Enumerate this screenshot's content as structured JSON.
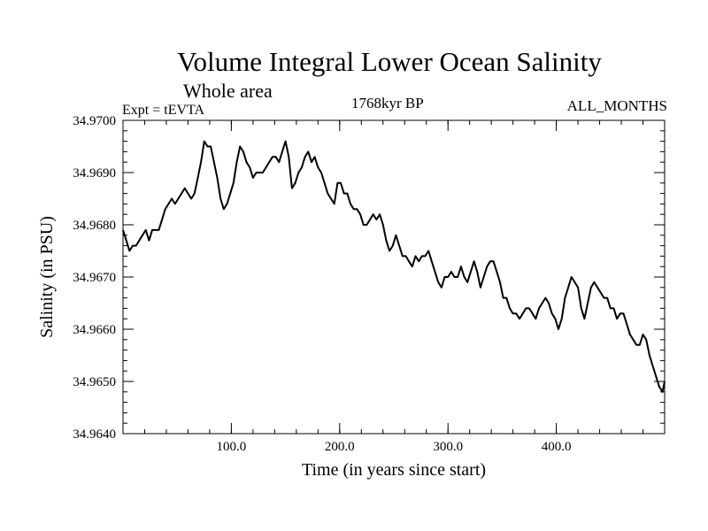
{
  "header": {
    "title": "Volume Integral Lower Ocean Salinity",
    "subtitle": "Whole area",
    "left_label": "Expt = tEVTA",
    "center_label": "1768kyr BP",
    "right_label": "ALL_MONTHS"
  },
  "chart_data": {
    "type": "line",
    "title": "Volume Integral Lower Ocean Salinity",
    "xlabel": "Time (in years since start)",
    "ylabel": "Salinity (in PSU)",
    "xlim": [
      0,
      500
    ],
    "ylim": [
      34.964,
      34.97
    ],
    "x_ticks": [
      100,
      200,
      300,
      400
    ],
    "x_tick_labels": [
      "100.0",
      "200.0",
      "300.0",
      "400.0"
    ],
    "y_ticks": [
      34.964,
      34.965,
      34.966,
      34.967,
      34.968,
      34.969,
      34.97
    ],
    "y_tick_labels": [
      "34.9640",
      "34.9650",
      "34.9660",
      "34.9670",
      "34.9680",
      "34.9690",
      "34.9700"
    ],
    "grid": false,
    "series": [
      {
        "name": "salinity",
        "color": "#000000",
        "x": [
          0,
          3,
          6,
          9,
          12,
          15,
          18,
          21,
          24,
          27,
          30,
          33,
          36,
          39,
          42,
          45,
          48,
          51,
          54,
          57,
          60,
          63,
          66,
          69,
          72,
          75,
          78,
          81,
          84,
          87,
          90,
          93,
          96,
          99,
          102,
          105,
          108,
          111,
          114,
          117,
          120,
          123,
          126,
          129,
          132,
          135,
          138,
          141,
          144,
          147,
          150,
          153,
          156,
          159,
          162,
          165,
          168,
          171,
          174,
          177,
          180,
          183,
          186,
          189,
          192,
          195,
          198,
          201,
          204,
          207,
          210,
          213,
          216,
          219,
          222,
          225,
          228,
          231,
          234,
          237,
          240,
          243,
          246,
          249,
          252,
          255,
          258,
          261,
          264,
          267,
          270,
          273,
          276,
          279,
          282,
          285,
          288,
          291,
          294,
          297,
          300,
          303,
          306,
          309,
          312,
          315,
          318,
          321,
          324,
          327,
          330,
          333,
          336,
          339,
          342,
          345,
          348,
          351,
          354,
          357,
          360,
          363,
          366,
          369,
          372,
          375,
          378,
          381,
          384,
          387,
          390,
          393,
          396,
          399,
          402,
          405,
          408,
          411,
          414,
          417,
          420,
          423,
          426,
          429,
          432,
          435,
          438,
          441,
          444,
          447,
          450,
          453,
          456,
          459,
          462,
          465,
          468,
          471,
          474,
          477,
          480,
          483,
          486,
          489,
          492,
          495,
          498,
          500
        ],
        "values": [
          34.9679,
          34.9677,
          34.9675,
          34.9676,
          34.9676,
          34.9677,
          34.9678,
          34.9679,
          34.9677,
          34.9679,
          34.9679,
          34.9679,
          34.9681,
          34.9683,
          34.9684,
          34.9685,
          34.9684,
          34.9685,
          34.9686,
          34.9687,
          34.9686,
          34.9685,
          34.9686,
          34.9689,
          34.9692,
          34.9696,
          34.9695,
          34.9695,
          34.9692,
          34.9689,
          34.9685,
          34.9683,
          34.9684,
          34.9686,
          34.9688,
          34.9692,
          34.9695,
          34.9694,
          34.9692,
          34.9691,
          34.9689,
          34.969,
          34.969,
          34.969,
          34.9691,
          34.9692,
          34.9693,
          34.9693,
          34.9692,
          34.9694,
          34.9696,
          34.9693,
          34.9687,
          34.9688,
          34.969,
          34.9691,
          34.9693,
          34.9694,
          34.9692,
          34.9693,
          34.9691,
          34.969,
          34.9688,
          34.9686,
          34.9685,
          34.9684,
          34.9688,
          34.9688,
          34.9686,
          34.9686,
          34.9684,
          34.9683,
          34.9683,
          34.9682,
          34.968,
          34.968,
          34.9681,
          34.9682,
          34.9681,
          34.9682,
          34.968,
          34.9677,
          34.9675,
          34.9676,
          34.9678,
          34.9676,
          34.9674,
          34.9674,
          34.9673,
          34.9672,
          34.9674,
          34.9673,
          34.9674,
          34.9674,
          34.9675,
          34.9673,
          34.9671,
          34.9669,
          34.9668,
          34.967,
          34.967,
          34.9671,
          34.967,
          34.967,
          34.9672,
          34.967,
          34.9669,
          34.9671,
          34.9673,
          34.9671,
          34.9668,
          34.967,
          34.9672,
          34.9673,
          34.9673,
          34.9671,
          34.9669,
          34.9666,
          34.9666,
          34.9664,
          34.9663,
          34.9663,
          34.9662,
          34.9663,
          34.9664,
          34.9664,
          34.9663,
          34.9662,
          34.9664,
          34.9665,
          34.9666,
          34.9665,
          34.9663,
          34.9662,
          34.966,
          34.9662,
          34.9666,
          34.9668,
          34.967,
          34.9669,
          34.9668,
          34.9664,
          34.9662,
          34.9665,
          34.9668,
          34.9669,
          34.9668,
          34.9667,
          34.9666,
          34.9666,
          34.9664,
          34.9664,
          34.9662,
          34.9663,
          34.9663,
          34.9661,
          34.9659,
          34.9658,
          34.9657,
          34.9657,
          34.9659,
          34.9658,
          34.9655,
          34.9653,
          34.9651,
          34.9649,
          34.9648,
          34.965
        ]
      }
    ]
  }
}
